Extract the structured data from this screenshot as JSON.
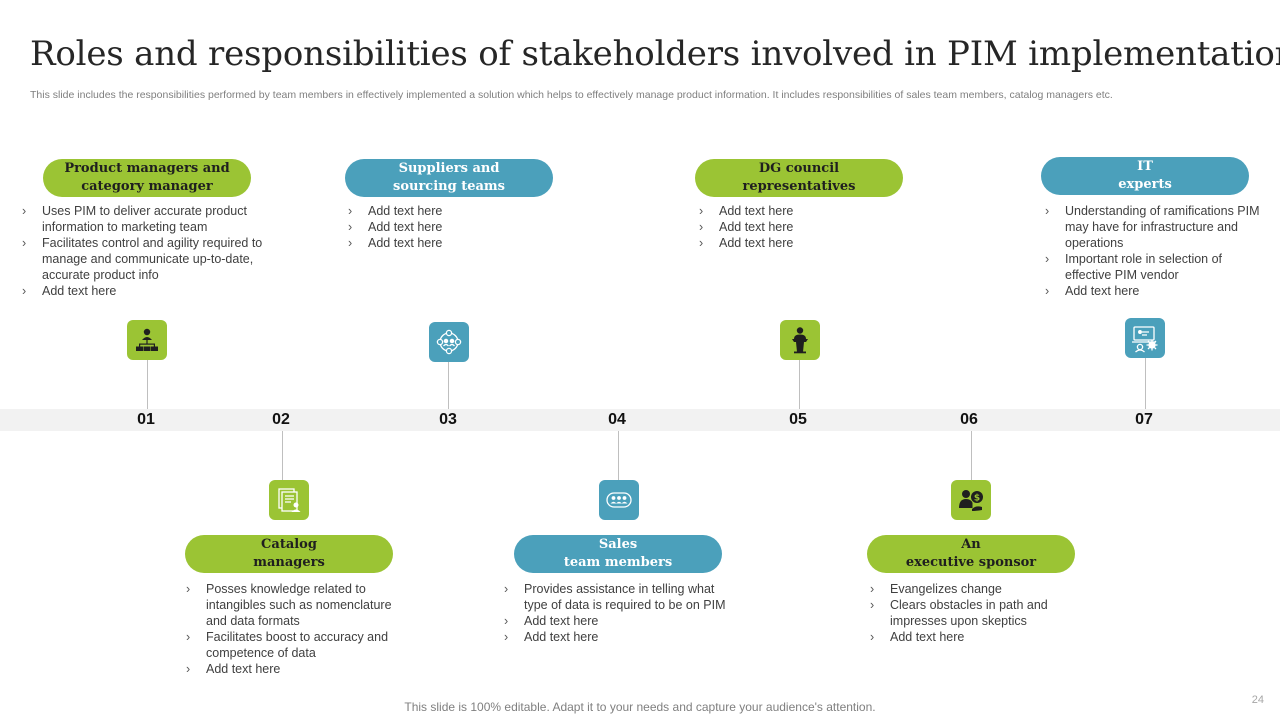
{
  "title": "Roles and responsibilities of stakeholders involved in PIM implementation",
  "subtitle": "This slide includes the responsibilities performed by team members in effectively implemented a solution which helps to effectively manage product information. It includes responsibilities of sales team members, catalog managers etc.",
  "numbers": [
    "01",
    "02",
    "03",
    "04",
    "05",
    "06",
    "07"
  ],
  "top_items": [
    {
      "heading_line1": "Product managers and",
      "heading_line2": "category manager",
      "icon": "org-chart-icon",
      "bullets": [
        "Uses PIM to deliver accurate product information to marketing team",
        "Facilitates control and agility required to manage and communicate up-to-date, accurate product info",
        "Add text here"
      ]
    },
    {
      "heading_line1": "Suppliers and",
      "heading_line2": "sourcing teams",
      "icon": "supply-network-icon",
      "bullets": [
        "Add text here",
        "Add text here",
        "Add text here"
      ]
    },
    {
      "heading_line1": "DG council",
      "heading_line2": "representatives",
      "icon": "speaker-podium-icon",
      "bullets": [
        "Add text here",
        "Add text here",
        "Add text here"
      ]
    },
    {
      "heading_line1": "IT",
      "heading_line2": "experts",
      "icon": "it-expert-icon",
      "bullets": [
        "Understanding of ramifications PIM may have for infrastructure and operations",
        "Important role in selection of effective PIM vendor",
        "Add text here"
      ]
    }
  ],
  "bottom_items": [
    {
      "heading_line1": "Catalog",
      "heading_line2": "managers",
      "icon": "catalog-icon",
      "bullets": [
        "Posses knowledge related to intangibles such as nomenclature and data formats",
        "Facilitates boost to accuracy and competence of data",
        "Add text here"
      ]
    },
    {
      "heading_line1": "Sales",
      "heading_line2": "team members",
      "icon": "team-icon",
      "bullets": [
        "Provides assistance in telling what type of data is required to be on PIM",
        "Add text here",
        "Add text here"
      ]
    },
    {
      "heading_line1": "An",
      "heading_line2": "executive sponsor",
      "icon": "sponsor-dollar-icon",
      "bullets": [
        "Evangelizes change",
        "Clears obstacles in path and impresses upon skeptics",
        "Add text here"
      ]
    }
  ],
  "footer": "This slide is 100% editable. Adapt it to your needs and capture your audience's attention.",
  "page_number": "24",
  "colors": {
    "green": "#9bc434",
    "blue": "#4ba0bb",
    "band": "#f2f2f2"
  }
}
